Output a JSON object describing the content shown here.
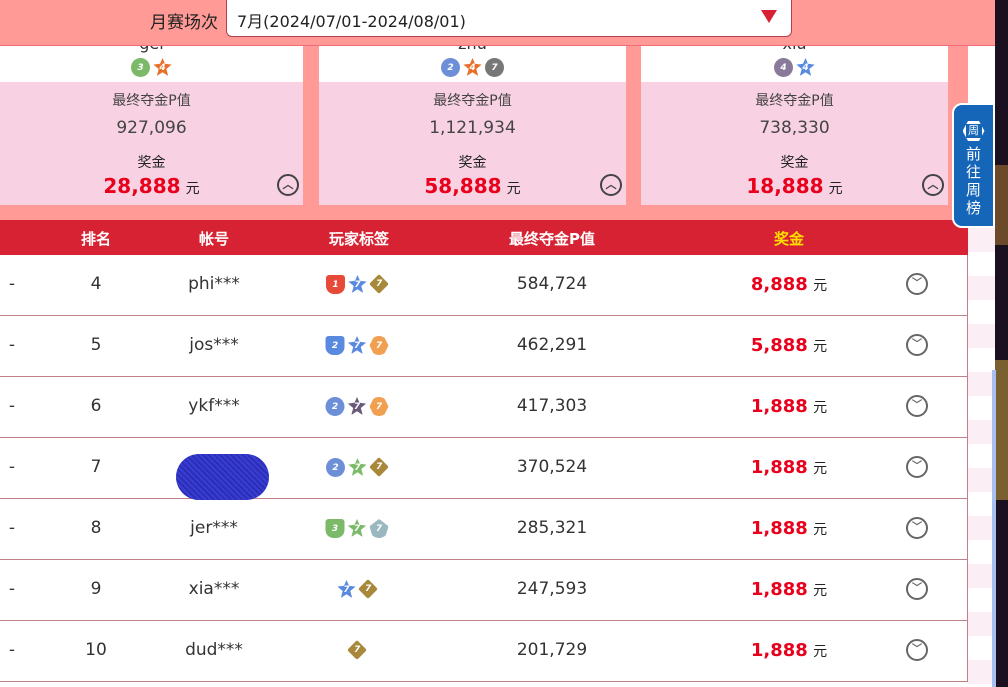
{
  "header": {
    "label": "月赛场次",
    "selected": "7月(2024/07/01-2024/08/01)"
  },
  "top3": [
    {
      "name": "gel",
      "badges": [
        {
          "shape": "circle",
          "color": "#7cba6a",
          "text": "3"
        },
        {
          "shape": "star",
          "color": "#e8702a",
          "text": "4"
        }
      ],
      "score_label": "最终夺金P值",
      "score": "927,096",
      "prize_label": "奖金",
      "prize": "28,888",
      "unit": "元"
    },
    {
      "name": "zhu",
      "badges": [
        {
          "shape": "circle",
          "color": "#6d8fd8",
          "text": "2"
        },
        {
          "shape": "star",
          "color": "#e8702a",
          "text": "4"
        },
        {
          "shape": "circle",
          "color": "#777",
          "text": "7"
        }
      ],
      "score_label": "最终夺金P值",
      "score": "1,121,934",
      "prize_label": "奖金",
      "prize": "58,888",
      "unit": "元"
    },
    {
      "name": "xiu",
      "badges": [
        {
          "shape": "circle",
          "color": "#8a7a9a",
          "text": "4"
        },
        {
          "shape": "star",
          "color": "#5a8ae0",
          "text": "4"
        }
      ],
      "score_label": "最终夺金P值",
      "score": "738,330",
      "prize_label": "奖金",
      "prize": "18,888",
      "unit": "元"
    }
  ],
  "table": {
    "headers": [
      "排名",
      "帐号",
      "玩家标签",
      "最终夺金P值",
      "奖金"
    ],
    "header_colors": {
      "default": "#ffffff",
      "prize": "#ffe000"
    },
    "rows": [
      {
        "trend": "-",
        "rank": "4",
        "account": "phi***",
        "score": "584,724",
        "prize": "8,888",
        "unit": "元",
        "badges": [
          {
            "shape": "cup",
            "color": "#e84a3a",
            "text": "1"
          },
          {
            "shape": "star",
            "color": "#5a8ae0",
            "text": "7"
          },
          {
            "shape": "diamond",
            "color": "#a8883a",
            "text": "7"
          }
        ]
      },
      {
        "trend": "-",
        "rank": "5",
        "account": "jos***",
        "score": "462,291",
        "prize": "5,888",
        "unit": "元",
        "badges": [
          {
            "shape": "cup",
            "color": "#5a8ae0",
            "text": "2"
          },
          {
            "shape": "star",
            "color": "#5a8ae0",
            "text": "7"
          },
          {
            "shape": "hex",
            "color": "#f0a050",
            "text": "7"
          }
        ]
      },
      {
        "trend": "-",
        "rank": "6",
        "account": "ykf***",
        "score": "417,303",
        "prize": "1,888",
        "unit": "元",
        "badges": [
          {
            "shape": "circle",
            "color": "#6d8fd8",
            "text": "2"
          },
          {
            "shape": "star",
            "color": "#6a5a7a",
            "text": "7"
          },
          {
            "shape": "hex",
            "color": "#f0a050",
            "text": "7"
          }
        ]
      },
      {
        "trend": "-",
        "rank": "7",
        "account": "",
        "score": "370,524",
        "prize": "1,888",
        "unit": "元",
        "badges": [
          {
            "shape": "circle",
            "color": "#6d8fd8",
            "text": "2"
          },
          {
            "shape": "star",
            "color": "#7cba6a",
            "text": "7"
          },
          {
            "shape": "diamond",
            "color": "#a8883a",
            "text": "7"
          }
        ]
      },
      {
        "trend": "-",
        "rank": "8",
        "account": "jer***",
        "score": "285,321",
        "prize": "1,888",
        "unit": "元",
        "badges": [
          {
            "shape": "cup",
            "color": "#7cba6a",
            "text": "3"
          },
          {
            "shape": "star",
            "color": "#7cba6a",
            "text": "7"
          },
          {
            "shape": "pent",
            "color": "#9ab8c0",
            "text": "7"
          }
        ]
      },
      {
        "trend": "-",
        "rank": "9",
        "account": "xia***",
        "score": "247,593",
        "prize": "1,888",
        "unit": "元",
        "badges": [
          {
            "shape": "star",
            "color": "#5a8ae0",
            "text": "7"
          },
          {
            "shape": "diamond",
            "color": "#a8883a",
            "text": "7"
          }
        ]
      },
      {
        "trend": "-",
        "rank": "10",
        "account": "dud***",
        "score": "201,729",
        "prize": "1,888",
        "unit": "元",
        "badges": [
          {
            "shape": "diamond",
            "color": "#a8883a",
            "text": "7"
          }
        ]
      }
    ]
  },
  "sidetab": {
    "icon_text": "周",
    "label": "前往周榜"
  }
}
